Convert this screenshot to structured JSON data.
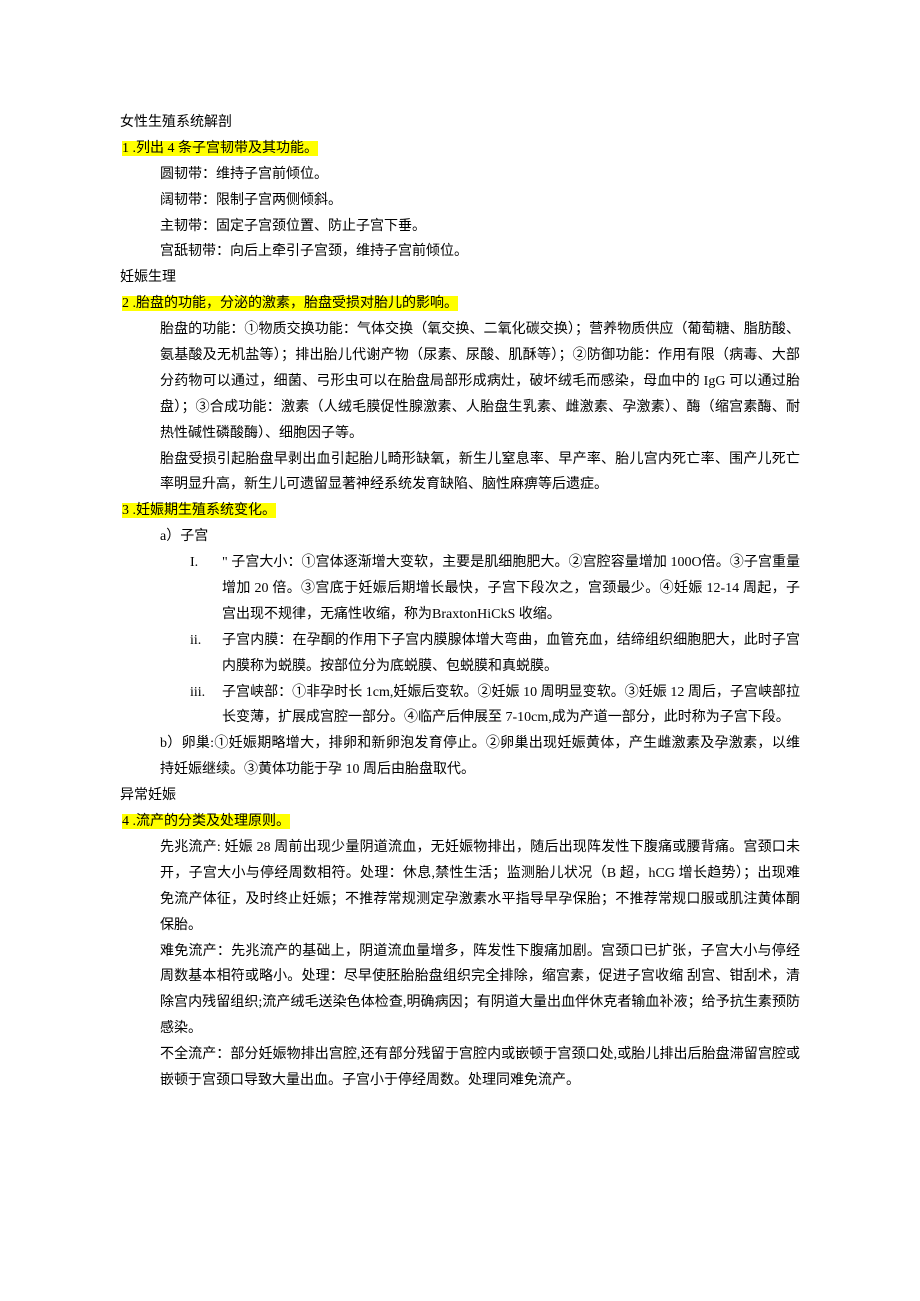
{
  "sect1_title": "女性生殖系统解剖",
  "q1": "1 .列出 4 条子宫韧带及其功能。",
  "q1_a1": "圆韧带：维持子宫前倾位。",
  "q1_a2": "阔韧带：限制子宫两侧倾斜。",
  "q1_a3": "主韧带：固定子宫颈位置、防止子宫下垂。",
  "q1_a4": "宫舐韧带：向后上牵引子宫颈，维持子宫前倾位。",
  "sect2_title": "妊娠生理",
  "q2": "2 .胎盘的功能，分泌的激素，胎盘受损对胎儿的影响。",
  "q2_p1": "胎盘的功能：①物质交换功能：气体交换（氧交换、二氧化碳交换）；营养物质供应（葡萄糖、脂肪酸、氨基酸及无机盐等）；排出胎儿代谢产物（尿素、尿酸、肌酥等）；②防御功能：作用有限（病毒、大部分药物可以通过，细菌、弓形虫可以在胎盘局部形成病灶，破坏绒毛而感染，母血中的 IgG 可以通过胎盘）；③合成功能：激素（人绒毛膜促性腺激素、人胎盘生乳素、雌激素、孕激素）、酶（缩宫素酶、耐热性碱性磷酸酶）、细胞因子等。",
  "q2_p2": "胎盘受损引起胎盘早剥出血引起胎儿畸形缺氧，新生儿窒息率、早产率、胎儿宫内死亡率、围产儿死亡率明显升高，新生儿可遗留显著神经系统发育缺陷、脑性麻痹等后遗症。",
  "q3": "3 .妊娠期生殖系统变化。",
  "q3_a_label": "a）子宫",
  "q3_i_label": "I.",
  "q3_i_body": "\" 子宫大小：①宫体逐渐增大变软，主要是肌细胞肥大。②宫腔容量增加 100O倍。③子宫重量增加 20 倍。③宫底于妊娠后期增长最快，子宫下段次之，宫颈最少。④妊娠 12-14 周起，子宫出现不规律，无痛性收缩，称为BraxtonHiCkS 收缩。",
  "q3_ii_label": "ii.",
  "q3_ii_body": "子宫内膜：在孕酮的作用下子宫内膜腺体增大弯曲，血管充血，结缔组织细胞肥大，此时子宫内膜称为蜕膜。按部位分为底蜕膜、包蜕膜和真蜕膜。",
  "q3_iii_label": "iii.",
  "q3_iii_body": "子宫峡部：①非孕时长 1cm,妊娠后变软。②妊娠 10 周明显变软。③妊娠 12 周后，子宫峡部拉长变薄，扩展成宫腔一部分。④临产后伸展至 7-10cm,成为产道一部分，此时称为子宫下段。",
  "q3_b": "b）卵巢:①妊娠期略增大，排卵和新卵泡发育停止。②卵巢出现妊娠黄体，产生雌激素及孕激素，以维持妊娠继续。③黄体功能于孕 10 周后由胎盘取代。",
  "sect3_title": "异常妊娠",
  "q4": "4 .流产的分类及处理原则。",
  "q4_p1": "先兆流产: 妊娠 28 周前出现少量阴道流血，无妊娠物排出，随后出现阵发性下腹痛或腰背痛。宫颈口未开，子宫大小与停经周数相符。处理：休息,禁性生活；监测胎儿状况（B 超，hCG 增长趋势）；出现难免流产体征，及时终止妊娠；不推荐常规测定孕激素水平指导早孕保胎；不推荐常规口服或肌注黄体酮保胎。",
  "q4_p2": "难免流产：先兆流产的基础上，阴道流血量增多，阵发性下腹痛加剧。宫颈口已扩张，子宫大小与停经周数基本相符或略小。处理：尽早使胚胎胎盘组织完全排除，缩宫素，促进子宫收缩 刮宫、钳刮术，清除宫内残留组织;流产绒毛送染色体检查,明确病因；有阴道大量出血伴休克者输血补液；给予抗生素预防感染。",
  "q4_p3": "不全流产：部分妊娠物排出宫腔,还有部分残留于宫腔内或嵌顿于宫颈口处,或胎儿排出后胎盘滞留宫腔或嵌顿于宫颈口导致大量出血。子宫小于停经周数。处理同难免流产。"
}
